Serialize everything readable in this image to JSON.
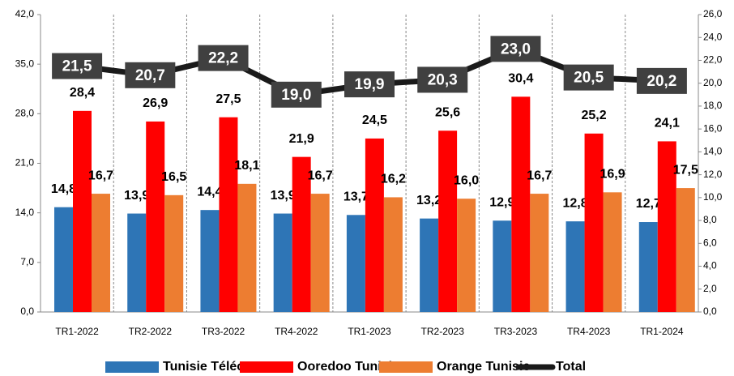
{
  "chart_data": {
    "type": "bar",
    "categories": [
      "TR1-2022",
      "TR2-2022",
      "TR3-2022",
      "TR4-2022",
      "TR1-2023",
      "TR2-2023",
      "TR3-2023",
      "TR4-2023",
      "TR1-2024"
    ],
    "series": [
      {
        "name": "Tunisie Télécom",
        "color": "#2e75b6",
        "values": [
          14.8,
          13.9,
          14.4,
          13.9,
          13.7,
          13.2,
          12.9,
          12.8,
          12.7
        ],
        "value_labels": [
          "14,8",
          "13,9",
          "14,4",
          "13,9",
          "13,7",
          "13,2",
          "12,9",
          "12,8",
          "12,7"
        ]
      },
      {
        "name": "Ooredoo Tunisie",
        "color": "#ff0000",
        "values": [
          28.4,
          26.9,
          27.5,
          21.9,
          24.5,
          25.6,
          30.4,
          25.2,
          24.1
        ],
        "value_labels": [
          "28,4",
          "26,9",
          "27,5",
          "21,9",
          "24,5",
          "25,6",
          "30,4",
          "25,2",
          "24,1"
        ]
      },
      {
        "name": "Orange Tunisie",
        "color": "#ed7d31",
        "values": [
          16.7,
          16.5,
          18.1,
          16.7,
          16.2,
          16.0,
          16.7,
          16.9,
          17.5
        ],
        "value_labels": [
          "16,7",
          "16,5",
          "18,1",
          "16,7",
          "16,2",
          "16,0",
          "16,7",
          "16,9",
          "17,5"
        ]
      },
      {
        "name": "Total",
        "type": "line",
        "axis": "y2",
        "color": "#1a1a1a",
        "values": [
          21.5,
          20.7,
          22.2,
          19.0,
          19.9,
          20.3,
          23.0,
          20.5,
          20.2
        ],
        "value_labels": [
          "21,5",
          "20,7",
          "22,2",
          "19,0",
          "19,9",
          "20,3",
          "23,0",
          "20,5",
          "20,2"
        ]
      }
    ],
    "ylim": [
      0,
      42
    ],
    "yticks": [
      {
        "value": 0,
        "label": "0,0"
      },
      {
        "value": 7,
        "label": "7,0"
      },
      {
        "value": 14,
        "label": "14,0"
      },
      {
        "value": 21,
        "label": "21,0"
      },
      {
        "value": 28,
        "label": "28,0"
      },
      {
        "value": 35,
        "label": "35,0"
      },
      {
        "value": 42,
        "label": "42,0"
      }
    ],
    "y2lim": [
      0,
      26
    ],
    "y2ticks": [
      {
        "value": 0,
        "label": "0,0"
      },
      {
        "value": 2,
        "label": "2,0"
      },
      {
        "value": 4,
        "label": "4,0"
      },
      {
        "value": 6,
        "label": "6,0"
      },
      {
        "value": 8,
        "label": "8,0"
      },
      {
        "value": 10,
        "label": "10,0"
      },
      {
        "value": 12,
        "label": "12,0"
      },
      {
        "value": 14,
        "label": "14,0"
      },
      {
        "value": 16,
        "label": "16,0"
      },
      {
        "value": 18,
        "label": "18,0"
      },
      {
        "value": 20,
        "label": "20,0"
      },
      {
        "value": 22,
        "label": "22,0"
      },
      {
        "value": 24,
        "label": "24,0"
      },
      {
        "value": 26,
        "label": "26,0"
      }
    ],
    "grid": false,
    "legend": "bottom"
  }
}
